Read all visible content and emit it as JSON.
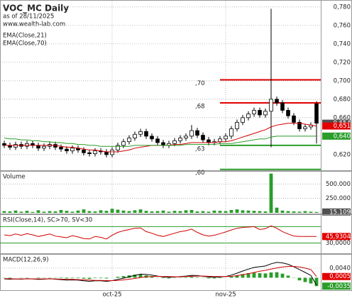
{
  "chart_data": [
    {
      "type": "candlestick",
      "title": "VOC_MC Daily",
      "subtitle": "as of 28/11/2025",
      "source": "www.wealth-lab.com",
      "up_color": "#ffffff",
      "down_color": "#000000",
      "open": [
        0.632,
        0.63,
        0.628,
        0.631,
        0.629,
        0.632,
        0.63,
        0.627,
        0.629,
        0.631,
        0.628,
        0.626,
        0.624,
        0.627,
        0.625,
        0.622,
        0.621,
        0.624,
        0.623,
        0.62,
        0.625,
        0.63,
        0.634,
        0.638,
        0.642,
        0.645,
        0.64,
        0.637,
        0.633,
        0.63,
        0.632,
        0.635,
        0.638,
        0.64,
        0.646,
        0.641,
        0.636,
        0.633,
        0.634,
        0.637,
        0.64,
        0.648,
        0.655,
        0.66,
        0.664,
        0.668,
        0.663,
        0.667,
        0.68,
        0.676,
        0.668,
        0.662,
        0.655,
        0.648,
        0.65,
        0.675
      ],
      "high": [
        0.635,
        0.633,
        0.634,
        0.634,
        0.635,
        0.635,
        0.633,
        0.632,
        0.634,
        0.634,
        0.631,
        0.629,
        0.63,
        0.63,
        0.628,
        0.625,
        0.627,
        0.627,
        0.626,
        0.628,
        0.633,
        0.637,
        0.641,
        0.645,
        0.648,
        0.648,
        0.643,
        0.64,
        0.636,
        0.635,
        0.638,
        0.641,
        0.643,
        0.652,
        0.649,
        0.644,
        0.639,
        0.637,
        0.64,
        0.643,
        0.651,
        0.658,
        0.663,
        0.667,
        0.671,
        0.671,
        0.67,
        0.778,
        0.683,
        0.679,
        0.671,
        0.665,
        0.658,
        0.653,
        0.655,
        0.678
      ],
      "low": [
        0.627,
        0.625,
        0.625,
        0.626,
        0.626,
        0.627,
        0.624,
        0.624,
        0.626,
        0.625,
        0.623,
        0.621,
        0.621,
        0.622,
        0.619,
        0.618,
        0.618,
        0.62,
        0.617,
        0.617,
        0.622,
        0.627,
        0.631,
        0.635,
        0.639,
        0.637,
        0.634,
        0.63,
        0.627,
        0.627,
        0.629,
        0.632,
        0.635,
        0.637,
        0.638,
        0.633,
        0.63,
        0.63,
        0.631,
        0.634,
        0.637,
        0.645,
        0.652,
        0.657,
        0.661,
        0.66,
        0.66,
        0.628,
        0.673,
        0.665,
        0.659,
        0.652,
        0.645,
        0.645,
        0.647,
        0.632
      ],
      "close": [
        0.63,
        0.628,
        0.631,
        0.629,
        0.632,
        0.63,
        0.627,
        0.629,
        0.631,
        0.628,
        0.626,
        0.624,
        0.627,
        0.625,
        0.622,
        0.621,
        0.624,
        0.623,
        0.62,
        0.625,
        0.63,
        0.634,
        0.638,
        0.642,
        0.645,
        0.64,
        0.637,
        0.633,
        0.63,
        0.632,
        0.635,
        0.638,
        0.64,
        0.646,
        0.641,
        0.636,
        0.633,
        0.634,
        0.637,
        0.64,
        0.648,
        0.655,
        0.66,
        0.664,
        0.668,
        0.663,
        0.667,
        0.68,
        0.676,
        0.668,
        0.662,
        0.655,
        0.648,
        0.65,
        0.652,
        0.654
      ],
      "series": [
        {
          "name": "EMA(Close,21)",
          "color": "#d00000",
          "values": [
            0.63,
            0.63,
            0.63,
            0.63,
            0.63,
            0.63,
            0.63,
            0.63,
            0.63,
            0.63,
            0.629,
            0.628,
            0.628,
            0.627,
            0.626,
            0.625,
            0.625,
            0.624,
            0.623,
            0.623,
            0.623,
            0.624,
            0.625,
            0.627,
            0.628,
            0.629,
            0.63,
            0.63,
            0.63,
            0.63,
            0.631,
            0.631,
            0.632,
            0.633,
            0.633,
            0.633,
            0.633,
            0.633,
            0.634,
            0.634,
            0.635,
            0.637,
            0.639,
            0.641,
            0.643,
            0.645,
            0.647,
            0.65,
            0.652,
            0.653,
            0.654,
            0.654,
            0.654,
            0.653,
            0.652,
            0.651
          ]
        },
        {
          "name": "EMA(Close,70)",
          "color": "#2a9d2a",
          "values": [
            0.638,
            0.637,
            0.637,
            0.636,
            0.636,
            0.635,
            0.635,
            0.634,
            0.634,
            0.633,
            0.633,
            0.632,
            0.632,
            0.631,
            0.631,
            0.63,
            0.63,
            0.629,
            0.629,
            0.629,
            0.629,
            0.629,
            0.629,
            0.63,
            0.63,
            0.63,
            0.63,
            0.63,
            0.63,
            0.63,
            0.63,
            0.63,
            0.631,
            0.631,
            0.631,
            0.631,
            0.631,
            0.631,
            0.632,
            0.632,
            0.632,
            0.633,
            0.634,
            0.635,
            0.636,
            0.637,
            0.637,
            0.639,
            0.64,
            0.64,
            0.64,
            0.64,
            0.64,
            0.64,
            0.64,
            0.64
          ]
        }
      ],
      "levels": [
        {
          "value": 0.701,
          "label": ",70",
          "color": "#e00000"
        },
        {
          "value": 0.676,
          "label": ",68",
          "color": "#e00000"
        },
        {
          "value": 0.63,
          "label": ",63",
          "color": "#2a9d2a"
        },
        {
          "value": 0.604,
          "label": ",60",
          "color": "#2a9d2a"
        }
      ],
      "markers": [
        {
          "value": 0.654,
          "label": "0,654",
          "color": "#505050"
        },
        {
          "value": 0.651,
          "label": "0,651",
          "color": "#e00000"
        },
        {
          "value": 0.64,
          "label": "0,640",
          "color": "#2a9d2a"
        }
      ],
      "ylim": [
        0.603,
        0.786
      ],
      "yticks": [
        {
          "value": 0.62,
          "label": "0,620"
        },
        {
          "value": 0.64,
          "label": "0,640"
        },
        {
          "value": 0.66,
          "label": "0,660"
        },
        {
          "value": 0.68,
          "label": "0,680"
        },
        {
          "value": 0.7,
          "label": "0,700"
        },
        {
          "value": 0.72,
          "label": "0,720"
        },
        {
          "value": 0.74,
          "label": "0,740"
        },
        {
          "value": 0.76,
          "label": "0,760"
        },
        {
          "value": 0.78,
          "label": "0,780"
        }
      ]
    },
    {
      "type": "bar",
      "title": "Volume",
      "series": [
        {
          "color": "#2a9d2a",
          "style": "bar",
          "values": [
            30000,
            25000,
            40000,
            20000,
            35000,
            15000,
            45000,
            20000,
            30000,
            25000,
            50000,
            35000,
            20000,
            40000,
            60000,
            30000,
            25000,
            45000,
            35000,
            70000,
            55000,
            40000,
            30000,
            45000,
            60000,
            35000,
            25000,
            30000,
            40000,
            20000,
            35000,
            30000,
            45000,
            50000,
            25000,
            30000,
            20000,
            40000,
            35000,
            30000,
            50000,
            60000,
            45000,
            40000,
            35000,
            30000,
            25000,
            680000,
            90000,
            40000,
            30000,
            25000,
            20000,
            30000,
            20000,
            15109
          ]
        }
      ],
      "markers": [
        {
          "value": 15109,
          "label": "15.109",
          "color": "#505050"
        }
      ],
      "ylim": [
        0,
        700000
      ],
      "yticks": [
        {
          "value": 250000,
          "label": "250.000"
        },
        {
          "value": 500000,
          "label": "500.000"
        }
      ]
    },
    {
      "type": "line",
      "title": "RSI(Close,14), SC>70, SV<30",
      "series": [
        {
          "color": "#d00000",
          "style": "line",
          "values": [
            50,
            48,
            52,
            49,
            53,
            50,
            46,
            49,
            52,
            47,
            45,
            43,
            48,
            45,
            41,
            40,
            46,
            44,
            40,
            49,
            56,
            60,
            63,
            66,
            67,
            58,
            54,
            49,
            46,
            50,
            54,
            58,
            60,
            64,
            56,
            50,
            47,
            49,
            53,
            57,
            62,
            66,
            68,
            69,
            70,
            63,
            65,
            72,
            66,
            58,
            52,
            47,
            46,
            46,
            46,
            45.9304
          ]
        }
      ],
      "levels": [
        {
          "value": 70,
          "color": "#2a9d2a"
        },
        {
          "value": 30,
          "color": "#2a9d2a"
        }
      ],
      "markers": [
        {
          "value": 45.9304,
          "label": "45,9304",
          "color": "#e00000"
        }
      ],
      "ylim": [
        5,
        96.7
      ],
      "yticks": [
        {
          "value": 30,
          "label": "30,0000"
        }
      ]
    },
    {
      "type": "macd",
      "title": "MACD(12,26,9)",
      "series": [
        {
          "color": "#2a9d2a",
          "style": "bar",
          "values": [
            -0.0001,
            -0.0002,
            0.0,
            -0.0001,
            0.0001,
            0.0,
            -0.0002,
            -0.0001,
            0.0001,
            -0.0001,
            -0.0002,
            -0.0003,
            -0.0002,
            -0.0002,
            -0.0004,
            -0.0005,
            -0.0002,
            -0.0002,
            -0.0003,
            0.0,
            0.0004,
            0.0007,
            0.001,
            0.0013,
            0.0014,
            0.001,
            0.0006,
            0.0001,
            -0.0002,
            -0.0003,
            -0.0001,
            0.0001,
            0.0002,
            0.0004,
            0.0002,
            -0.0001,
            -0.0003,
            -0.0003,
            -0.0002,
            0.0,
            0.0005,
            0.001,
            0.0015,
            0.0019,
            0.0021,
            0.0019,
            0.0018,
            0.0022,
            0.0023,
            0.0017,
            0.0009,
            -0.0001,
            -0.0011,
            -0.0018,
            -0.0024,
            -0.0035
          ]
        },
        {
          "color": "#000000",
          "style": "line",
          "values": [
            -0.0005,
            -0.0006,
            -0.0005,
            -0.0006,
            -0.0004,
            -0.0005,
            -0.0007,
            -0.0006,
            -0.0004,
            -0.0006,
            -0.0008,
            -0.001,
            -0.0009,
            -0.001,
            -0.0013,
            -0.0015,
            -0.0013,
            -0.0013,
            -0.0015,
            -0.0012,
            -0.0007,
            -0.0002,
            0.0004,
            0.001,
            0.0015,
            0.0014,
            0.0011,
            0.0007,
            0.0003,
            0.0002,
            0.0003,
            0.0005,
            0.0007,
            0.001,
            0.0009,
            0.0006,
            0.0003,
            0.0002,
            0.0003,
            0.0005,
            0.0011,
            0.0019,
            0.0028,
            0.0036,
            0.0043,
            0.0046,
            0.0049,
            0.0058,
            0.0064,
            0.0062,
            0.0056,
            0.0046,
            0.0034,
            0.0022,
            0.001,
            -0.003
          ]
        },
        {
          "color": "#d00000",
          "style": "line",
          "values": [
            -0.0004,
            -0.0004,
            -0.0005,
            -0.0005,
            -0.0005,
            -0.0005,
            -0.0005,
            -0.0005,
            -0.0005,
            -0.0005,
            -0.0006,
            -0.0007,
            -0.0007,
            -0.0008,
            -0.0009,
            -0.001,
            -0.0011,
            -0.0011,
            -0.0012,
            -0.0012,
            -0.0011,
            -0.0009,
            -0.0006,
            -0.0003,
            0.0001,
            0.0004,
            0.0005,
            0.0006,
            0.0005,
            0.0005,
            0.0004,
            0.0004,
            0.0005,
            0.0006,
            0.0007,
            0.0007,
            0.0006,
            0.0005,
            0.0005,
            0.0005,
            0.0006,
            0.0009,
            0.0013,
            0.0017,
            0.0022,
            0.0027,
            0.0031,
            0.0036,
            0.0041,
            0.0045,
            0.0047,
            0.0047,
            0.0045,
            0.004,
            0.0034,
            0.0005
          ]
        }
      ],
      "markers": [
        {
          "value": 0.0005,
          "label": "0,0005",
          "color": "#e00000"
        },
        {
          "value": -0.0035,
          "label": "-0,0035",
          "color": "#2a9d2a"
        }
      ],
      "ylim": [
        -0.0049,
        0.0093
      ],
      "yticks": [
        {
          "value": 0.004,
          "label": "0,0040"
        }
      ],
      "xticks": [
        {
          "value": 19,
          "label": "oct-25"
        },
        {
          "value": 39,
          "label": "nov-25"
        }
      ]
    }
  ]
}
